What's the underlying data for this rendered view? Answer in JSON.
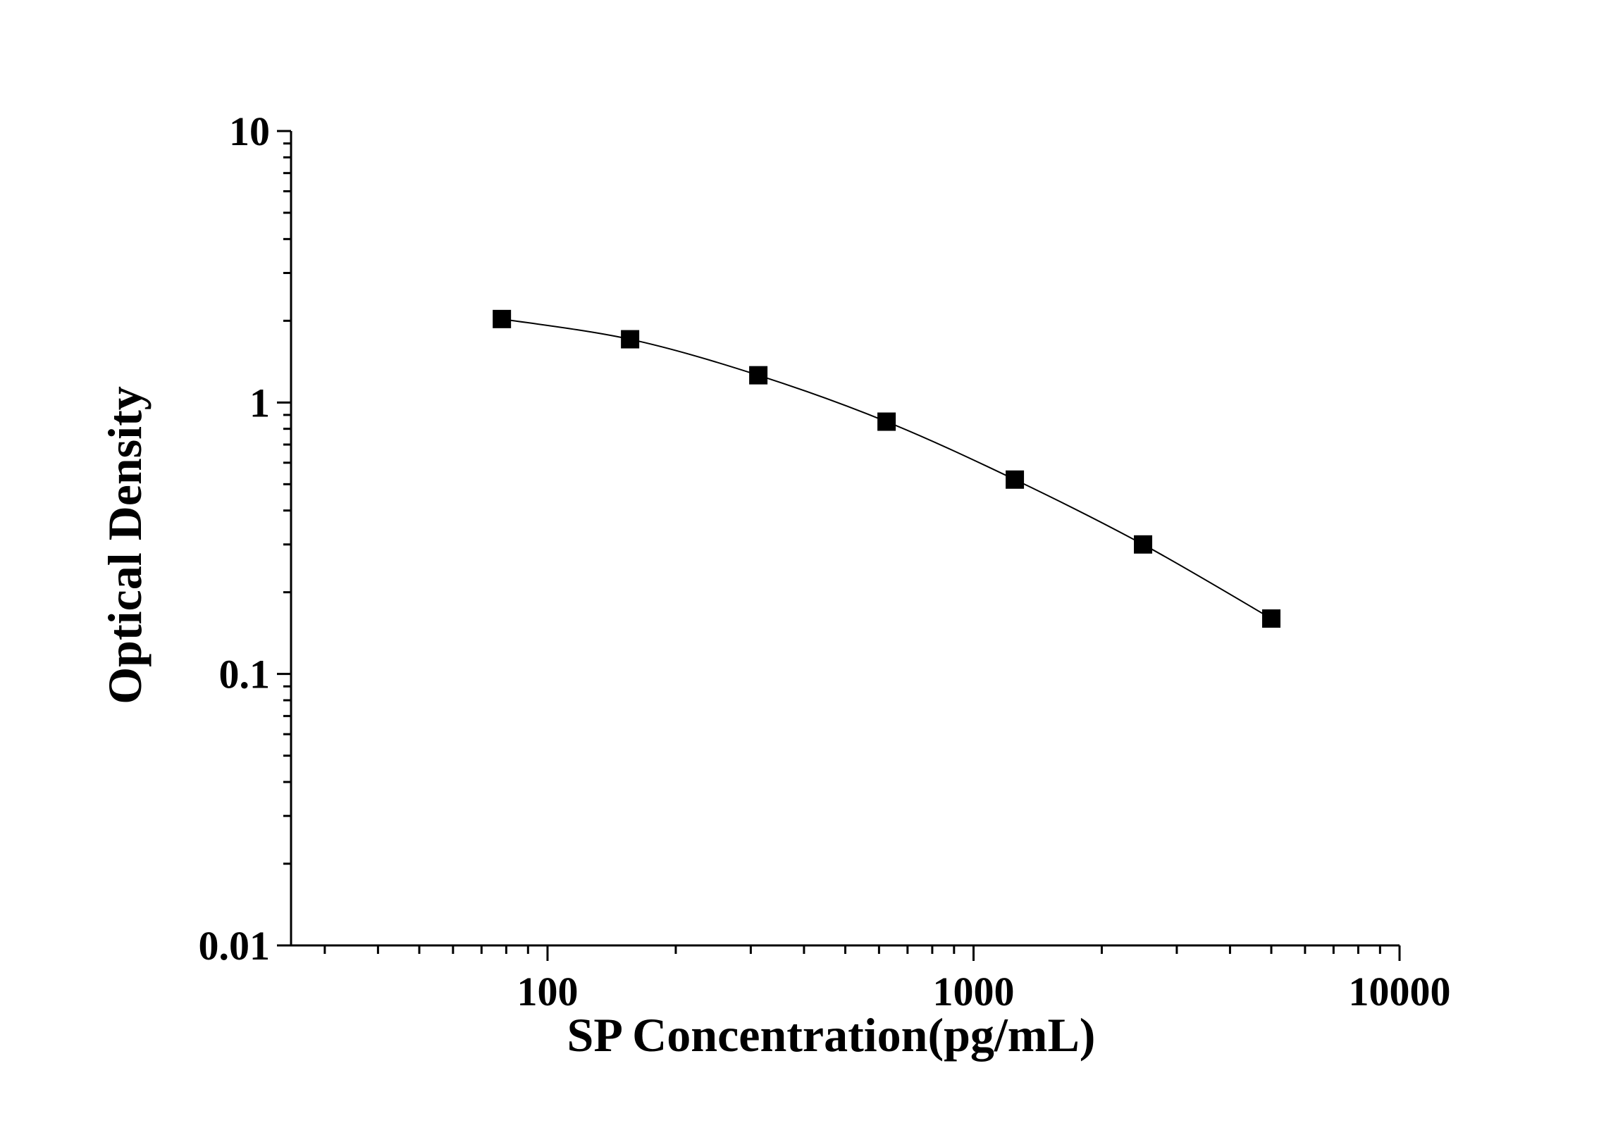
{
  "chart_data": {
    "type": "scatter",
    "title": "",
    "xlabel": "SP Concentration(pg/mL)",
    "ylabel": "Optical Density",
    "xscale": "log",
    "yscale": "log",
    "xlim": [
      25,
      10000
    ],
    "ylim": [
      0.01,
      10
    ],
    "xticks": [
      "100",
      "1000",
      "10000"
    ],
    "yticks": [
      "0.01",
      "0.1",
      "1",
      "10"
    ],
    "grid": false,
    "legend": "none",
    "marker": "square",
    "color": "#000000",
    "series": [
      {
        "x": [
          78.13,
          156.25,
          312.5,
          625,
          1250,
          2500,
          5000
        ],
        "y": [
          2.03,
          1.71,
          1.26,
          0.85,
          0.52,
          0.3,
          0.16
        ]
      }
    ]
  }
}
